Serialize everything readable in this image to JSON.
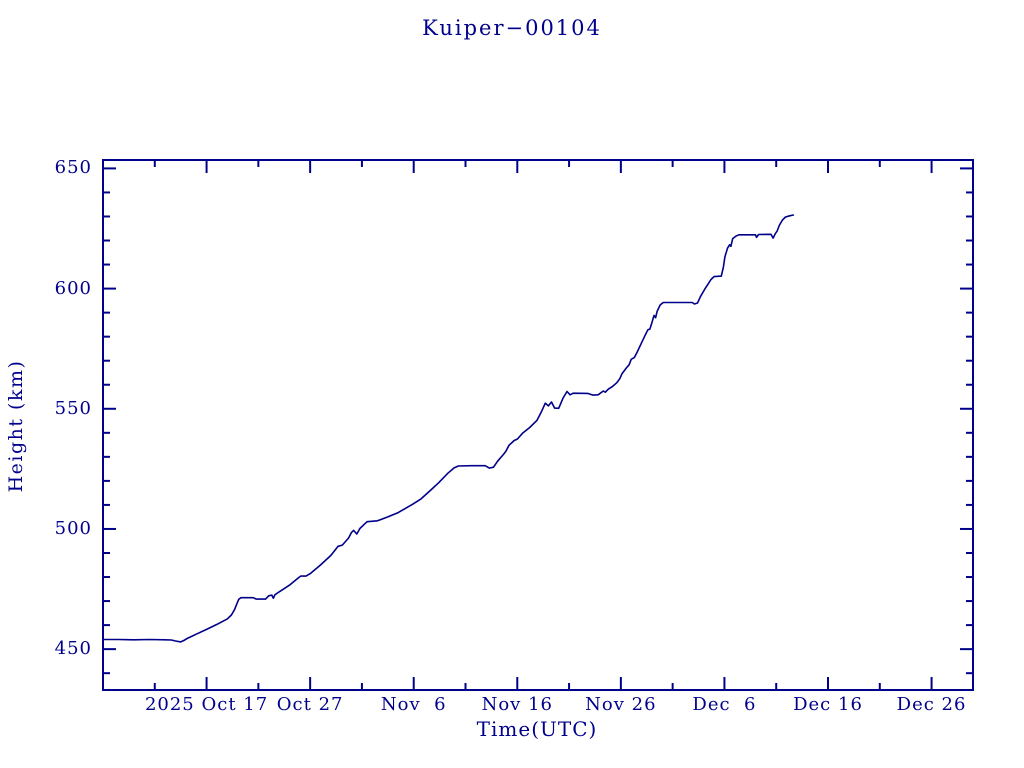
{
  "window": {
    "background": "#ffffff"
  },
  "colors": {
    "accent": "#00008b",
    "line": "#00008b",
    "text": "#00008b"
  },
  "chart_data": {
    "type": "line",
    "title": "Kuiper−00104",
    "xlabel": "Time(UTC)",
    "ylabel": "Height (km)",
    "grid": false,
    "legend": "none",
    "x_axis": {
      "unit": "days since 2025 Oct 7 00:00 UTC",
      "range_days": [
        0,
        84
      ],
      "major_ticks": [
        {
          "day": 10,
          "label": "2025 Oct 17"
        },
        {
          "day": 20,
          "label": "Oct 27"
        },
        {
          "day": 30,
          "label": "Nov  6"
        },
        {
          "day": 40,
          "label": "Nov 16"
        },
        {
          "day": 50,
          "label": "Nov 26"
        },
        {
          "day": 60,
          "label": "Dec  6"
        },
        {
          "day": 70,
          "label": "Dec 16"
        },
        {
          "day": 80,
          "label": "Dec 26"
        }
      ],
      "minor_tick_days": [
        5,
        15,
        25,
        35,
        45,
        55,
        65,
        75
      ]
    },
    "y_axis": {
      "range_km": [
        433,
        653.5
      ],
      "major_ticks": [
        450,
        500,
        550,
        600,
        650
      ],
      "minor_step_km": 10
    },
    "series": [
      {
        "name": "Kuiper-00104 height",
        "color": "#00008b",
        "points": [
          [
            0,
            454
          ],
          [
            1.5,
            454
          ],
          [
            3,
            453.9
          ],
          [
            4.5,
            454
          ],
          [
            6,
            453.9
          ],
          [
            6.6,
            453.8
          ],
          [
            7,
            453.4
          ],
          [
            7.5,
            453
          ],
          [
            7.8,
            453.6
          ],
          [
            8.2,
            454.6
          ],
          [
            9,
            456.2
          ],
          [
            10,
            458.2
          ],
          [
            11,
            460.3
          ],
          [
            12,
            462.6
          ],
          [
            12.4,
            464.2
          ],
          [
            12.7,
            466.4
          ],
          [
            12.9,
            468.6
          ],
          [
            13.1,
            470.7
          ],
          [
            13.3,
            471.4
          ],
          [
            14.5,
            471.4
          ],
          [
            14.8,
            470.8
          ],
          [
            15.7,
            470.8
          ],
          [
            16,
            472.2
          ],
          [
            16.3,
            472.5
          ],
          [
            16.45,
            471.2
          ],
          [
            16.6,
            472.6
          ],
          [
            17,
            473.8
          ],
          [
            18,
            476.6
          ],
          [
            18.9,
            479.8
          ],
          [
            19.1,
            480.4
          ],
          [
            19.6,
            480.4
          ],
          [
            20,
            481.4
          ],
          [
            21,
            485
          ],
          [
            22,
            489
          ],
          [
            22.7,
            492.8
          ],
          [
            23.1,
            493.3
          ],
          [
            23.7,
            496.2
          ],
          [
            24,
            498.6
          ],
          [
            24.2,
            499.4
          ],
          [
            24.5,
            497.9
          ],
          [
            24.8,
            500.2
          ],
          [
            25.2,
            501.8
          ],
          [
            25.5,
            503
          ],
          [
            26.5,
            503.4
          ],
          [
            27.5,
            505
          ],
          [
            28.5,
            506.8
          ],
          [
            29.9,
            510.3
          ],
          [
            30.7,
            512.5
          ],
          [
            31.6,
            516
          ],
          [
            32.4,
            519.2
          ],
          [
            33.3,
            523.2
          ],
          [
            33.9,
            525.4
          ],
          [
            34.3,
            526.2
          ],
          [
            35.6,
            526.3
          ],
          [
            36.9,
            526.3
          ],
          [
            37.3,
            525.3
          ],
          [
            37.7,
            525.7
          ],
          [
            38.1,
            528.2
          ],
          [
            38.7,
            531.2
          ],
          [
            38.9,
            532.3
          ],
          [
            39.2,
            534.8
          ],
          [
            39.7,
            536.8
          ],
          [
            40,
            537.4
          ],
          [
            40.5,
            539.8
          ],
          [
            41.2,
            542.2
          ],
          [
            41.9,
            545.2
          ],
          [
            42.3,
            548.5
          ],
          [
            42.7,
            552.3
          ],
          [
            43,
            551.2
          ],
          [
            43.3,
            552.8
          ],
          [
            43.6,
            550.3
          ],
          [
            44,
            550.2
          ],
          [
            44.4,
            554.3
          ],
          [
            44.8,
            557.2
          ],
          [
            45.1,
            555.8
          ],
          [
            45.4,
            556.5
          ],
          [
            46.8,
            556.4
          ],
          [
            47.3,
            555.7
          ],
          [
            47.8,
            555.8
          ],
          [
            48.3,
            557.4
          ],
          [
            48.5,
            556.9
          ],
          [
            48.8,
            558.2
          ],
          [
            49.2,
            559.3
          ],
          [
            49.6,
            560.8
          ],
          [
            49.9,
            562.5
          ],
          [
            50.1,
            564.5
          ],
          [
            50.5,
            566.8
          ],
          [
            50.8,
            568.3
          ],
          [
            51,
            570.6
          ],
          [
            51.3,
            571.3
          ],
          [
            51.6,
            573.8
          ],
          [
            52,
            577.5
          ],
          [
            52.3,
            580.2
          ],
          [
            52.6,
            582.8
          ],
          [
            52.8,
            583.2
          ],
          [
            53,
            585.8
          ],
          [
            53.2,
            588.8
          ],
          [
            53.35,
            587.9
          ],
          [
            53.5,
            590.5
          ],
          [
            53.8,
            593.2
          ],
          [
            54.1,
            594.2
          ],
          [
            55.5,
            594.2
          ],
          [
            56.9,
            594.2
          ],
          [
            57.1,
            593.6
          ],
          [
            57.4,
            594
          ],
          [
            57.7,
            596.8
          ],
          [
            58.1,
            599.8
          ],
          [
            58.4,
            601.8
          ],
          [
            58.7,
            603.8
          ],
          [
            59,
            605
          ],
          [
            59.7,
            605.2
          ],
          [
            59.9,
            609
          ],
          [
            60.05,
            613.2
          ],
          [
            60.3,
            616.8
          ],
          [
            60.5,
            618.2
          ],
          [
            60.62,
            617.6
          ],
          [
            60.8,
            620.8
          ],
          [
            61.1,
            621.8
          ],
          [
            61.4,
            622.4
          ],
          [
            62.2,
            622.4
          ],
          [
            63,
            622.4
          ],
          [
            63.1,
            621.3
          ],
          [
            63.3,
            622.5
          ],
          [
            64.5,
            622.6
          ],
          [
            64.7,
            621
          ],
          [
            64.9,
            622.8
          ],
          [
            65.1,
            624
          ],
          [
            65.3,
            626.3
          ],
          [
            65.6,
            628.5
          ],
          [
            65.9,
            629.8
          ],
          [
            66.3,
            630.3
          ],
          [
            66.65,
            630.6
          ]
        ]
      }
    ]
  }
}
